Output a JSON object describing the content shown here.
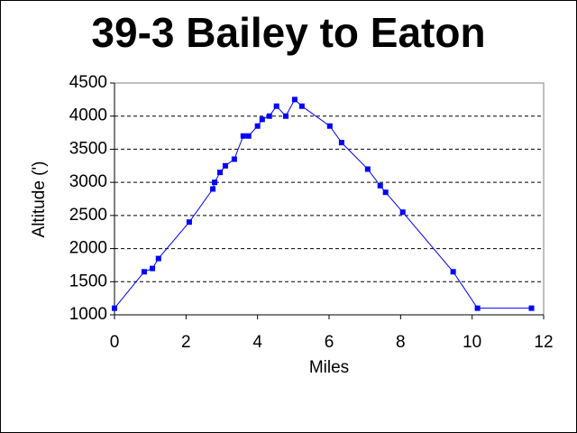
{
  "chart_data": {
    "type": "line",
    "title": "39-3 Bailey to Eaton",
    "x_label": "Miles",
    "y_label": "Altitude (')",
    "x": [
      0,
      0.83,
      1.06,
      1.23,
      2.09,
      2.75,
      2.8,
      2.95,
      3.1,
      3.35,
      3.6,
      3.75,
      4.0,
      4.13,
      4.33,
      4.53,
      4.79,
      5.04,
      5.24,
      6.02,
      6.35,
      7.08,
      7.43,
      7.58,
      8.06,
      9.47,
      10.15,
      11.66
    ],
    "series": [
      {
        "color": "#0000ff",
        "values": [
          1100,
          1650,
          1700,
          1850,
          2400,
          2900,
          3000,
          3150,
          3250,
          3350,
          3700,
          3700,
          3850,
          3950,
          4000,
          4150,
          4000,
          4250,
          4150,
          3850,
          3600,
          3200,
          2950,
          2850,
          2550,
          1650,
          1100,
          1100
        ]
      }
    ],
    "xlim": [
      0,
      12
    ],
    "xticks": [
      0,
      2,
      4,
      6,
      8,
      10,
      12
    ],
    "ylim": [
      1000,
      4500
    ],
    "yticks": [
      1000,
      1500,
      2000,
      2500,
      3000,
      3500,
      4000,
      4500
    ],
    "grid": true
  }
}
